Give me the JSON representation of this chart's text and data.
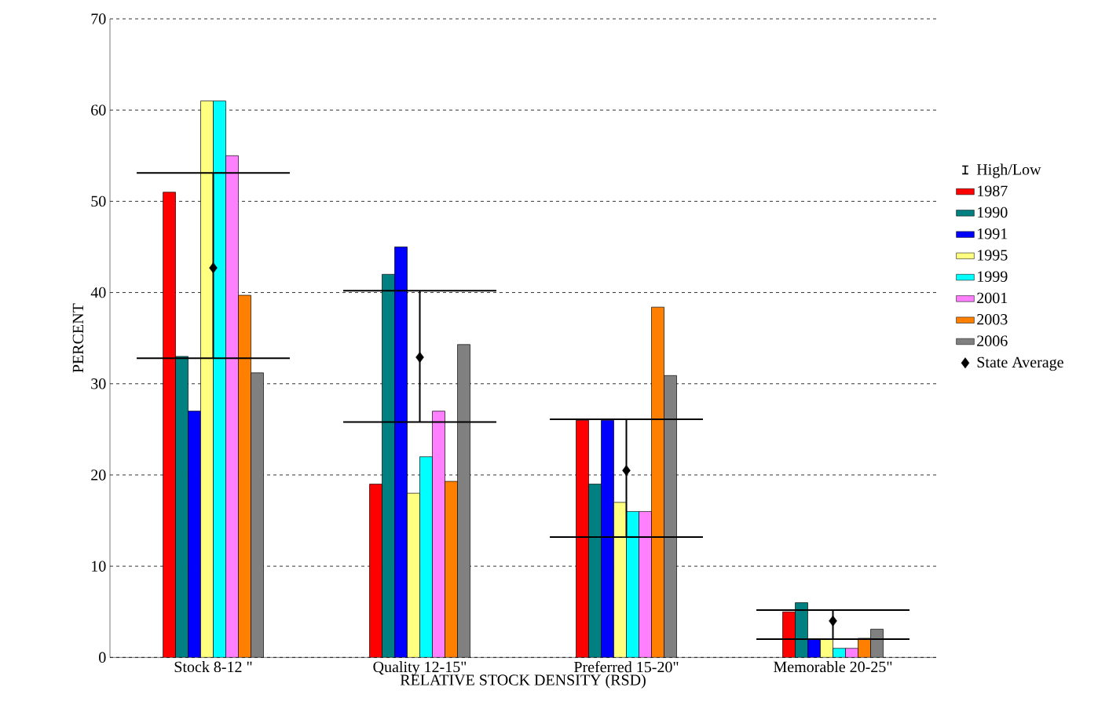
{
  "chart_data": {
    "type": "bar",
    "xlabel": "RELATIVE STOCK DENSITY  (RSD)",
    "ylabel": "PERCENT",
    "categories": [
      "Stock 8-12 \"",
      "Quality 12-15\"",
      "Preferred 15-20\"",
      "Memorable 20-25\""
    ],
    "ylim": [
      0,
      70
    ],
    "yticks": [
      0,
      10,
      20,
      30,
      40,
      50,
      60,
      70
    ],
    "grid": "y",
    "legend": "right",
    "series": [
      {
        "name": "High/Low",
        "type": "scatter",
        "marker": "none",
        "color": "#000000",
        "values": [
          null,
          null,
          null,
          null
        ]
      },
      {
        "name": "1987",
        "color": "#ff0000",
        "values": [
          51,
          19,
          26,
          5
        ]
      },
      {
        "name": "1990",
        "color": "#008080",
        "values": [
          33,
          42,
          19,
          6
        ]
      },
      {
        "name": "1991",
        "color": "#0000ff",
        "values": [
          27,
          45,
          26,
          2
        ]
      },
      {
        "name": "1995",
        "color": "#ffff80",
        "values": [
          61,
          18,
          17,
          2
        ]
      },
      {
        "name": "1999",
        "color": "#00ffff",
        "values": [
          61,
          22,
          16,
          1
        ]
      },
      {
        "name": "2001",
        "color": "#ff80ff",
        "values": [
          55,
          27,
          16,
          1
        ]
      },
      {
        "name": "2003",
        "color": "#ff8000",
        "values": [
          39.7,
          19.3,
          38.4,
          2.1
        ]
      },
      {
        "name": "2006",
        "color": "#808080",
        "values": [
          31.2,
          34.3,
          30.9,
          3.1
        ]
      },
      {
        "name": "State Average",
        "type": "scatter",
        "marker": "diamond",
        "color": "#000000",
        "values": [
          42.7,
          32.9,
          20.5,
          4.0
        ],
        "errors": [
          [
            32.8,
            53.1
          ],
          [
            25.8,
            40.2
          ],
          [
            13.2,
            26.1
          ],
          [
            2.0,
            5.2
          ]
        ]
      }
    ]
  }
}
